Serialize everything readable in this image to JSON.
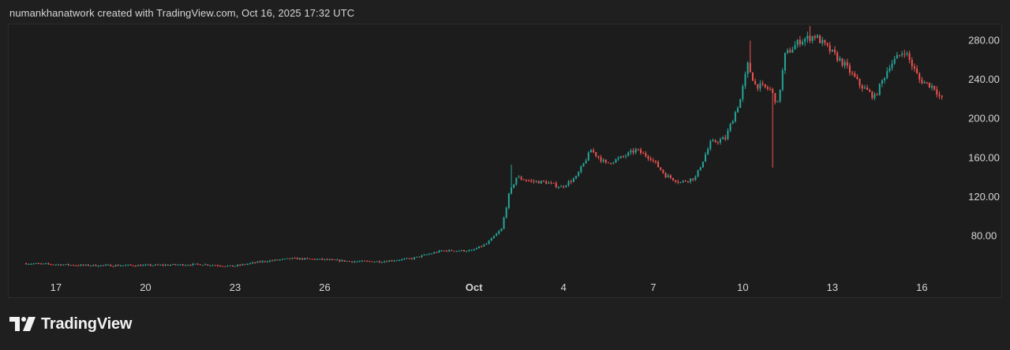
{
  "header": {
    "credit": "numankhanatwork created with TradingView.com, Oct 16, 2025 17:32 UTC"
  },
  "brand": {
    "name": "TradingView",
    "logo_icon": "tradingview-logo-icon"
  },
  "colors": {
    "background": "#1f1f1f",
    "up": "#26a69a",
    "down": "#ef5350",
    "axis_text": "#d6d6d6"
  },
  "chart_data": {
    "type": "candlestick",
    "title": "",
    "xlabel": "",
    "ylabel": "",
    "grid": false,
    "legend": "none",
    "y_axis_side": "right",
    "ylim": [
      40,
      295
    ],
    "y_ticks": [
      "80.00",
      "120.00",
      "160.00",
      "200.00",
      "240.00",
      "280.00"
    ],
    "y_tick_values": [
      80,
      120,
      160,
      200,
      240,
      280
    ],
    "x_start": "2025-09-16",
    "x_end": "2025-10-16",
    "x_ticks": [
      {
        "date": "2025-09-17",
        "label": "17",
        "bold": false
      },
      {
        "date": "2025-09-20",
        "label": "20",
        "bold": false
      },
      {
        "date": "2025-09-23",
        "label": "23",
        "bold": false
      },
      {
        "date": "2025-09-26",
        "label": "26",
        "bold": false
      },
      {
        "date": "2025-10-01",
        "label": "Oct",
        "bold": true
      },
      {
        "date": "2025-10-04",
        "label": "4",
        "bold": false
      },
      {
        "date": "2025-10-07",
        "label": "7",
        "bold": false
      },
      {
        "date": "2025-10-10",
        "label": "10",
        "bold": false
      },
      {
        "date": "2025-10-13",
        "label": "13",
        "bold": false
      },
      {
        "date": "2025-10-16",
        "label": "16",
        "bold": false
      }
    ],
    "series": [
      {
        "price_path": [
          [
            "2025-09-16",
            52
          ],
          [
            "2025-09-18",
            50
          ],
          [
            "2025-09-20",
            50
          ],
          [
            "2025-09-22",
            51
          ],
          [
            "2025-09-23",
            49
          ],
          [
            "2025-09-24",
            54
          ],
          [
            "2025-09-25",
            57
          ],
          [
            "2025-09-26",
            56
          ],
          [
            "2025-09-27",
            54
          ],
          [
            "2025-09-28",
            54
          ],
          [
            "2025-09-29",
            57
          ],
          [
            "2025-09-30",
            65
          ],
          [
            "2025-10-01",
            65
          ],
          [
            "2025-10-01 12:00",
            72
          ],
          [
            "2025-10-02",
            87
          ],
          [
            "2025-10-02 06:00",
            122
          ],
          [
            "2025-10-02 12:00",
            140
          ],
          [
            "2025-10-03",
            136
          ],
          [
            "2025-10-03 12:00",
            135
          ],
          [
            "2025-10-04",
            130
          ],
          [
            "2025-10-04 12:00",
            140
          ],
          [
            "2025-10-05",
            168
          ],
          [
            "2025-10-05 12:00",
            154
          ],
          [
            "2025-10-06",
            160
          ],
          [
            "2025-10-06 12:00",
            168
          ],
          [
            "2025-10-07",
            160
          ],
          [
            "2025-10-07 12:00",
            142
          ],
          [
            "2025-10-08",
            135
          ],
          [
            "2025-10-08 12:00",
            140
          ],
          [
            "2025-10-09",
            175
          ],
          [
            "2025-10-09 12:00",
            180
          ],
          [
            "2025-10-10",
            220
          ],
          [
            "2025-10-10 06:00",
            255
          ],
          [
            "2025-10-10 12:00",
            235
          ],
          [
            "2025-10-11",
            230
          ],
          [
            "2025-10-11 06:00",
            215
          ],
          [
            "2025-10-11 12:00",
            265
          ],
          [
            "2025-10-12",
            280
          ],
          [
            "2025-10-12 12:00",
            285
          ],
          [
            "2025-10-13",
            270
          ],
          [
            "2025-10-13 12:00",
            255
          ],
          [
            "2025-10-14",
            235
          ],
          [
            "2025-10-14 12:00",
            222
          ],
          [
            "2025-10-15",
            255
          ],
          [
            "2025-10-15 12:00",
            270
          ],
          [
            "2025-10-16",
            240
          ],
          [
            "2025-10-16 12:00",
            232
          ],
          [
            "2025-10-16 17:32",
            220
          ]
        ],
        "notable_wicks": [
          {
            "date": "2025-10-10 06:00",
            "high": 280
          },
          {
            "date": "2025-10-11",
            "low": 150
          },
          {
            "date": "2025-10-12 06:00",
            "high": 295
          },
          {
            "date": "2025-10-02 06:00",
            "high": 153
          }
        ]
      }
    ]
  }
}
